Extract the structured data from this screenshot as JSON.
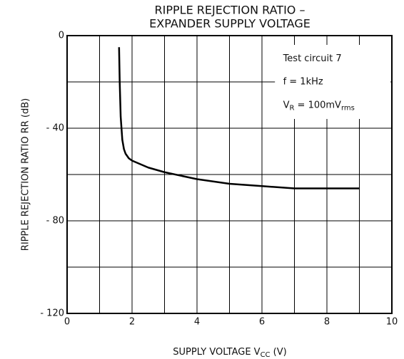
{
  "chart_data": {
    "type": "line",
    "title": [
      "RIPPLE REJECTION RATIO  –",
      "EXPANDER SUPPLY VOLTAGE"
    ],
    "x_label": [
      "SUPPLY VOLTAGE   V",
      "CC",
      "   (V)"
    ],
    "y_label": "RIPPLE REJECTION RATIO    RR    (dB)",
    "annotations": [
      "Test circuit 7",
      "f = 1kHz",
      [
        "V",
        "R",
        " = 100mV",
        "rms"
      ]
    ],
    "x": [
      1.6,
      1.62,
      1.65,
      1.7,
      1.75,
      1.8,
      1.9,
      2,
      2.5,
      3,
      4,
      5,
      6,
      7,
      8,
      9
    ],
    "series": [
      {
        "name": "RR",
        "color": "#000000",
        "values": [
          -5,
          -20,
          -35,
          -45,
          -49,
          -51,
          -53,
          -54,
          -57,
          -59,
          -62,
          -64,
          -65,
          -66,
          -66,
          -66
        ]
      }
    ],
    "xlim": [
      0,
      10
    ],
    "xticks": [
      0,
      2,
      4,
      6,
      8,
      10
    ],
    "xminor": [
      1,
      3,
      5,
      7,
      9
    ],
    "ylim": [
      -120,
      0
    ],
    "yticks": [
      0,
      {
        "value": -40,
        "label": "- 40"
      },
      {
        "value": -80,
        "label": "- 80"
      },
      {
        "value": -120,
        "label": "- 120"
      }
    ],
    "yminor": [
      -20,
      -60,
      -100
    ],
    "grid": true
  }
}
